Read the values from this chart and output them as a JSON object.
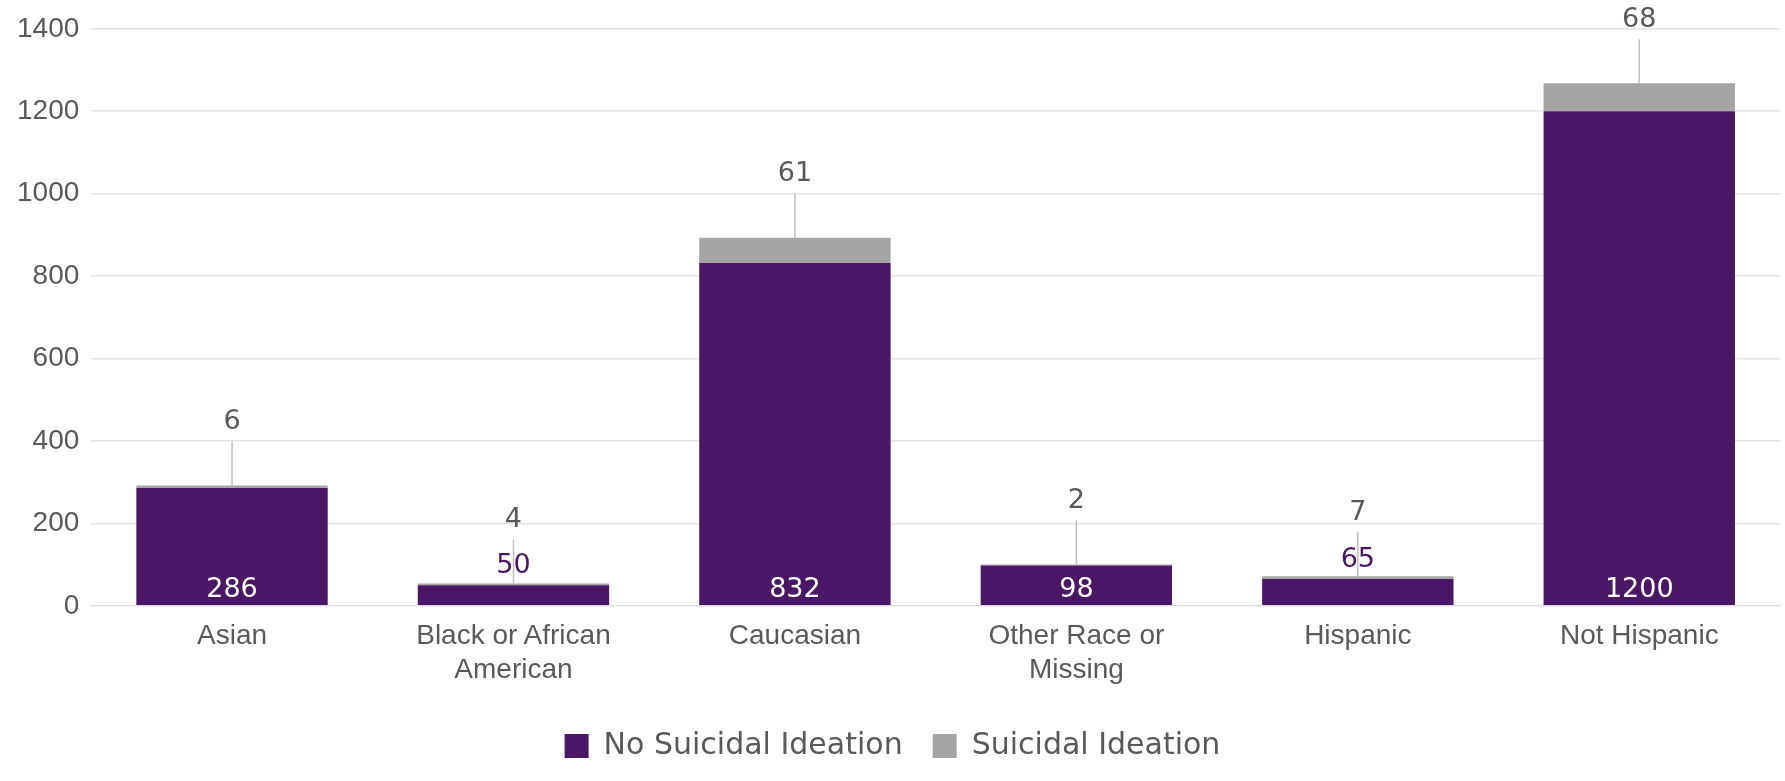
{
  "chart_data": {
    "type": "bar",
    "stacked": true,
    "categories": [
      "Asian",
      "Black or African American",
      "Caucasian",
      "Other Race or Missing",
      "Hispanic",
      "Not Hispanic"
    ],
    "series": [
      {
        "name": "No Suicidal Ideation",
        "color": "#4a1766",
        "values": [
          286,
          50,
          832,
          98,
          65,
          1200
        ]
      },
      {
        "name": "Suicidal Ideation",
        "color": "#a5a5a5",
        "values": [
          6,
          4,
          61,
          2,
          7,
          68
        ]
      }
    ],
    "ylim": [
      0,
      1400
    ],
    "yticks": [
      0,
      200,
      400,
      600,
      800,
      1000,
      1200,
      1400
    ],
    "grid": "y",
    "legend": "bottom",
    "data_labels": true
  }
}
